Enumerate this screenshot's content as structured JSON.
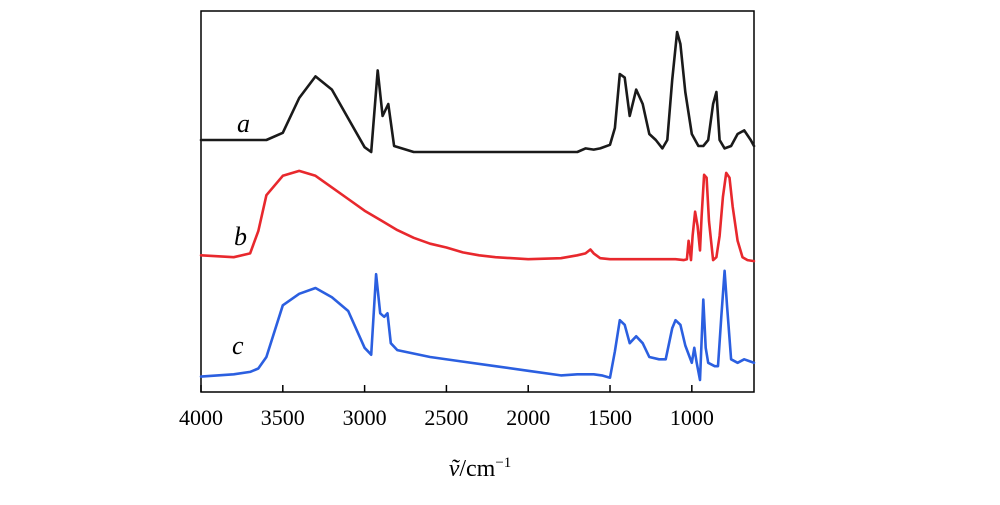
{
  "chart_data": {
    "type": "line",
    "title": "",
    "xlabel": "ṽ/cm⁻¹",
    "xlabel_main": "ṽ",
    "xlabel_unit": "/cm",
    "xlabel_exp": "−1",
    "ylabel": "",
    "xlim": [
      4000,
      620
    ],
    "x_reversed": true,
    "x_ticks": [
      4000,
      3500,
      3000,
      2500,
      2000,
      1500,
      1000
    ],
    "x_tick_labels": [
      "4000",
      "3500",
      "3000",
      "2500",
      "2000",
      "1500",
      "1000"
    ],
    "grid": false,
    "series": [
      {
        "name": "a",
        "label": "a",
        "color": "#1a1a1a",
        "points": [
          [
            4000,
            0.1
          ],
          [
            3700,
            0.1
          ],
          [
            3600,
            0.1
          ],
          [
            3500,
            0.16
          ],
          [
            3400,
            0.45
          ],
          [
            3300,
            0.63
          ],
          [
            3200,
            0.52
          ],
          [
            3100,
            0.28
          ],
          [
            3000,
            0.04
          ],
          [
            2960,
            0.0
          ],
          [
            2920,
            0.68
          ],
          [
            2890,
            0.3
          ],
          [
            2855,
            0.4
          ],
          [
            2820,
            0.05
          ],
          [
            2700,
            0.0
          ],
          [
            2500,
            0.0
          ],
          [
            2000,
            0.0
          ],
          [
            1700,
            0.0
          ],
          [
            1650,
            0.03
          ],
          [
            1600,
            0.02
          ],
          [
            1560,
            0.03
          ],
          [
            1500,
            0.06
          ],
          [
            1470,
            0.2
          ],
          [
            1440,
            0.65
          ],
          [
            1410,
            0.62
          ],
          [
            1380,
            0.3
          ],
          [
            1340,
            0.52
          ],
          [
            1300,
            0.4
          ],
          [
            1260,
            0.15
          ],
          [
            1220,
            0.1
          ],
          [
            1180,
            0.03
          ],
          [
            1150,
            0.1
          ],
          [
            1120,
            0.6
          ],
          [
            1090,
            1.0
          ],
          [
            1070,
            0.9
          ],
          [
            1040,
            0.5
          ],
          [
            1000,
            0.15
          ],
          [
            960,
            0.05
          ],
          [
            930,
            0.05
          ],
          [
            900,
            0.1
          ],
          [
            870,
            0.4
          ],
          [
            850,
            0.5
          ],
          [
            830,
            0.1
          ],
          [
            800,
            0.03
          ],
          [
            760,
            0.05
          ],
          [
            720,
            0.15
          ],
          [
            680,
            0.18
          ],
          [
            640,
            0.1
          ],
          [
            620,
            0.05
          ]
        ]
      },
      {
        "name": "b",
        "label": "b",
        "color": "#e8282d",
        "points": [
          [
            4000,
            0.1
          ],
          [
            3800,
            0.08
          ],
          [
            3700,
            0.12
          ],
          [
            3650,
            0.35
          ],
          [
            3600,
            0.72
          ],
          [
            3500,
            0.92
          ],
          [
            3400,
            0.97
          ],
          [
            3300,
            0.92
          ],
          [
            3200,
            0.8
          ],
          [
            3100,
            0.68
          ],
          [
            3000,
            0.56
          ],
          [
            2900,
            0.46
          ],
          [
            2800,
            0.36
          ],
          [
            2700,
            0.28
          ],
          [
            2600,
            0.22
          ],
          [
            2500,
            0.18
          ],
          [
            2400,
            0.13
          ],
          [
            2300,
            0.1
          ],
          [
            2200,
            0.08
          ],
          [
            2000,
            0.06
          ],
          [
            1800,
            0.07
          ],
          [
            1700,
            0.1
          ],
          [
            1650,
            0.12
          ],
          [
            1620,
            0.16
          ],
          [
            1600,
            0.12
          ],
          [
            1560,
            0.07
          ],
          [
            1500,
            0.06
          ],
          [
            1300,
            0.06
          ],
          [
            1100,
            0.06
          ],
          [
            1050,
            0.05
          ],
          [
            1030,
            0.06
          ],
          [
            1020,
            0.25
          ],
          [
            1005,
            0.05
          ],
          [
            995,
            0.3
          ],
          [
            980,
            0.55
          ],
          [
            965,
            0.4
          ],
          [
            950,
            0.15
          ],
          [
            940,
            0.5
          ],
          [
            925,
            0.93
          ],
          [
            910,
            0.9
          ],
          [
            895,
            0.45
          ],
          [
            870,
            0.05
          ],
          [
            850,
            0.08
          ],
          [
            830,
            0.3
          ],
          [
            810,
            0.7
          ],
          [
            790,
            0.95
          ],
          [
            770,
            0.9
          ],
          [
            750,
            0.6
          ],
          [
            720,
            0.25
          ],
          [
            690,
            0.08
          ],
          [
            660,
            0.05
          ],
          [
            620,
            0.04
          ]
        ]
      },
      {
        "name": "c",
        "label": "c",
        "color": "#2b5fe0",
        "points": [
          [
            4000,
            0.03
          ],
          [
            3800,
            0.05
          ],
          [
            3700,
            0.07
          ],
          [
            3650,
            0.1
          ],
          [
            3600,
            0.2
          ],
          [
            3500,
            0.65
          ],
          [
            3400,
            0.75
          ],
          [
            3300,
            0.8
          ],
          [
            3200,
            0.72
          ],
          [
            3100,
            0.6
          ],
          [
            3000,
            0.28
          ],
          [
            2960,
            0.22
          ],
          [
            2930,
            0.92
          ],
          [
            2905,
            0.58
          ],
          [
            2880,
            0.55
          ],
          [
            2860,
            0.58
          ],
          [
            2840,
            0.32
          ],
          [
            2800,
            0.26
          ],
          [
            2600,
            0.2
          ],
          [
            2400,
            0.16
          ],
          [
            2200,
            0.12
          ],
          [
            2000,
            0.08
          ],
          [
            1800,
            0.04
          ],
          [
            1700,
            0.05
          ],
          [
            1600,
            0.05
          ],
          [
            1550,
            0.04
          ],
          [
            1500,
            0.02
          ],
          [
            1470,
            0.25
          ],
          [
            1440,
            0.52
          ],
          [
            1410,
            0.48
          ],
          [
            1380,
            0.32
          ],
          [
            1340,
            0.38
          ],
          [
            1300,
            0.32
          ],
          [
            1260,
            0.2
          ],
          [
            1200,
            0.18
          ],
          [
            1160,
            0.18
          ],
          [
            1120,
            0.45
          ],
          [
            1100,
            0.52
          ],
          [
            1070,
            0.48
          ],
          [
            1040,
            0.3
          ],
          [
            1000,
            0.15
          ],
          [
            985,
            0.28
          ],
          [
            970,
            0.15
          ],
          [
            950,
            0.0
          ],
          [
            930,
            0.7
          ],
          [
            915,
            0.28
          ],
          [
            900,
            0.15
          ],
          [
            860,
            0.12
          ],
          [
            840,
            0.12
          ],
          [
            820,
            0.55
          ],
          [
            800,
            0.95
          ],
          [
            785,
            0.65
          ],
          [
            760,
            0.18
          ],
          [
            720,
            0.15
          ],
          [
            680,
            0.18
          ],
          [
            640,
            0.16
          ],
          [
            620,
            0.15
          ]
        ]
      }
    ]
  }
}
